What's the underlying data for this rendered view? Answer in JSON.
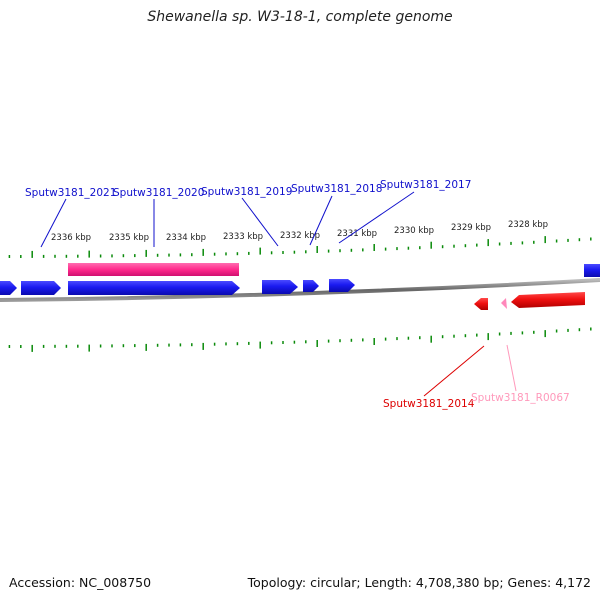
{
  "title": "Shewanella sp. W3-18-1, complete genome",
  "accession": "Accession: NC_008750",
  "summary": "Topology: circular; Length: 4,708,380 bp; Genes: 4,172",
  "colors": {
    "forward_gene": "#1010ee",
    "reverse_gene": "#ee0000",
    "rna": "#ff3399",
    "pseudo_rna": "#ff99bb",
    "tick": "#0a8a0a",
    "backbone": "#777777"
  },
  "ticks": {
    "labels": [
      "2336 kbp",
      "2335 kbp",
      "2334 kbp",
      "2333 kbp",
      "2332 kbp",
      "2331 kbp",
      "2330 kbp",
      "2329 kbp",
      "2328 kbp"
    ]
  },
  "gene_labels": [
    {
      "id": "g2021",
      "text": "Sputw3181_2021",
      "color": "#1010cc"
    },
    {
      "id": "g2020",
      "text": "Sputw3181_2020",
      "color": "#1010cc"
    },
    {
      "id": "g2019",
      "text": "Sputw3181_2019",
      "color": "#1010cc"
    },
    {
      "id": "g2018",
      "text": "Sputw3181_2018",
      "color": "#1010cc"
    },
    {
      "id": "g2017",
      "text": "Sputw3181_2017",
      "color": "#1010cc"
    },
    {
      "id": "g2014",
      "text": "Sputw3181_2014",
      "color": "#dd0000"
    },
    {
      "id": "r0067",
      "text": "Sputw3181_R0067",
      "color": "#ff99bb"
    }
  ]
}
